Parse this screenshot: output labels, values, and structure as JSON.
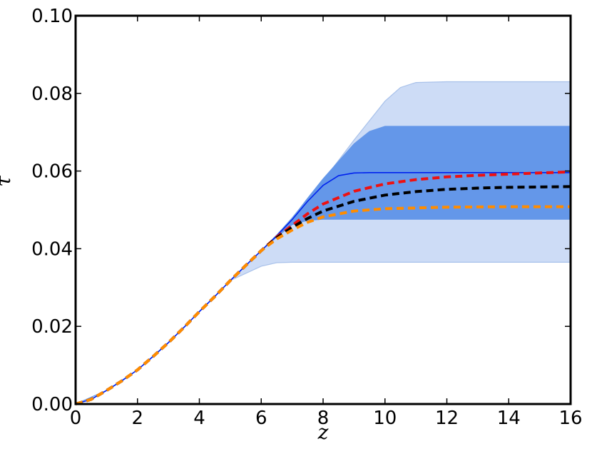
{
  "chart_data": {
    "type": "line",
    "xlabel": "z",
    "ylabel": "τ",
    "xlim": [
      0,
      16
    ],
    "ylim": [
      0,
      0.1
    ],
    "x_ticks": [
      "0",
      "2",
      "4",
      "6",
      "8",
      "10",
      "12",
      "14",
      "16"
    ],
    "y_ticks": [
      "0.00",
      "0.02",
      "0.04",
      "0.06",
      "0.08",
      "0.10"
    ],
    "grid": false,
    "bands": [
      {
        "color": "#cddcf6",
        "edge": "#a8c1ea",
        "x": [
          0,
          1,
          2,
          3,
          4,
          5,
          6,
          6.5,
          7,
          8,
          9,
          10,
          10.5,
          11,
          12,
          14,
          16
        ],
        "upper": [
          0,
          0.0035,
          0.0088,
          0.0158,
          0.0238,
          0.0318,
          0.0395,
          0.0435,
          0.048,
          0.0575,
          0.068,
          0.078,
          0.0815,
          0.0828,
          0.083,
          0.083,
          0.083
        ],
        "lower": [
          0,
          0.0035,
          0.0088,
          0.0158,
          0.0238,
          0.0318,
          0.0355,
          0.0364,
          0.0365,
          0.0365,
          0.0365,
          0.0365,
          0.0365,
          0.0365,
          0.0365,
          0.0365,
          0.0365
        ]
      },
      {
        "color": "#6497e9",
        "edge": "#6497e9",
        "x": [
          0,
          1,
          2,
          3,
          4,
          5,
          6,
          6.5,
          7,
          7.5,
          8,
          9,
          9.5,
          10,
          11,
          12,
          14,
          16
        ],
        "upper": [
          0,
          0.0035,
          0.0088,
          0.0158,
          0.0238,
          0.0318,
          0.0395,
          0.0435,
          0.0478,
          0.053,
          0.058,
          0.067,
          0.0702,
          0.0715,
          0.0715,
          0.0715,
          0.0715,
          0.0715
        ],
        "lower": [
          0,
          0.0035,
          0.0088,
          0.0158,
          0.0238,
          0.0318,
          0.0395,
          0.043,
          0.0462,
          0.0473,
          0.0476,
          0.0476,
          0.0476,
          0.0476,
          0.0476,
          0.0476,
          0.0476,
          0.0476
        ]
      }
    ],
    "series": [
      {
        "color": "#0022ee",
        "style": "solid",
        "x": [
          0,
          0.5,
          1,
          1.5,
          2,
          2.5,
          3,
          3.5,
          4,
          4.5,
          5,
          5.5,
          6,
          6.5,
          7,
          7.5,
          8,
          8.5,
          9,
          9.5,
          10,
          12,
          14,
          16
        ],
        "y": [
          0,
          0.0012,
          0.0035,
          0.006,
          0.0088,
          0.0122,
          0.0158,
          0.0197,
          0.0238,
          0.0277,
          0.0318,
          0.0357,
          0.0395,
          0.0433,
          0.0475,
          0.0522,
          0.0563,
          0.0588,
          0.0595,
          0.0596,
          0.0596,
          0.0596,
          0.0596,
          0.0596
        ]
      },
      {
        "color": "#ee1111",
        "style": "dashed",
        "x": [
          0,
          0.5,
          1,
          1.5,
          2,
          2.5,
          3,
          3.5,
          4,
          4.5,
          5,
          5.5,
          6,
          6.5,
          7,
          7.5,
          8,
          9,
          10,
          11,
          12,
          13,
          14,
          15,
          16
        ],
        "y": [
          0,
          0.0012,
          0.0035,
          0.006,
          0.0088,
          0.0122,
          0.0158,
          0.0197,
          0.0238,
          0.0277,
          0.0318,
          0.0357,
          0.0395,
          0.043,
          0.046,
          0.049,
          0.0515,
          0.0548,
          0.0567,
          0.0578,
          0.0585,
          0.0589,
          0.0592,
          0.0595,
          0.0598
        ]
      },
      {
        "color": "#000000",
        "style": "dashed",
        "x": [
          0,
          0.5,
          1,
          1.5,
          2,
          2.5,
          3,
          3.5,
          4,
          4.5,
          5,
          5.5,
          6,
          6.5,
          7,
          7.5,
          8,
          9,
          10,
          11,
          12,
          13,
          14,
          15,
          16
        ],
        "y": [
          0,
          0.0012,
          0.0035,
          0.006,
          0.0088,
          0.0122,
          0.0158,
          0.0197,
          0.0238,
          0.0277,
          0.0318,
          0.0357,
          0.0395,
          0.0428,
          0.0455,
          0.0478,
          0.0497,
          0.0522,
          0.0538,
          0.0547,
          0.0553,
          0.0556,
          0.0558,
          0.0559,
          0.056
        ]
      },
      {
        "color": "#ff8c00",
        "style": "dashed",
        "x": [
          0,
          0.5,
          1,
          1.5,
          2,
          2.5,
          3,
          3.5,
          4,
          4.5,
          5,
          5.5,
          6,
          6.5,
          7,
          7.5,
          8,
          9,
          10,
          11,
          12,
          14,
          16
        ],
        "y": [
          0,
          0.0012,
          0.0035,
          0.006,
          0.0088,
          0.0122,
          0.0158,
          0.0197,
          0.0238,
          0.0277,
          0.0318,
          0.0357,
          0.0395,
          0.0425,
          0.0448,
          0.0468,
          0.0482,
          0.0497,
          0.0503,
          0.0505,
          0.0507,
          0.0508,
          0.0508
        ]
      }
    ]
  }
}
